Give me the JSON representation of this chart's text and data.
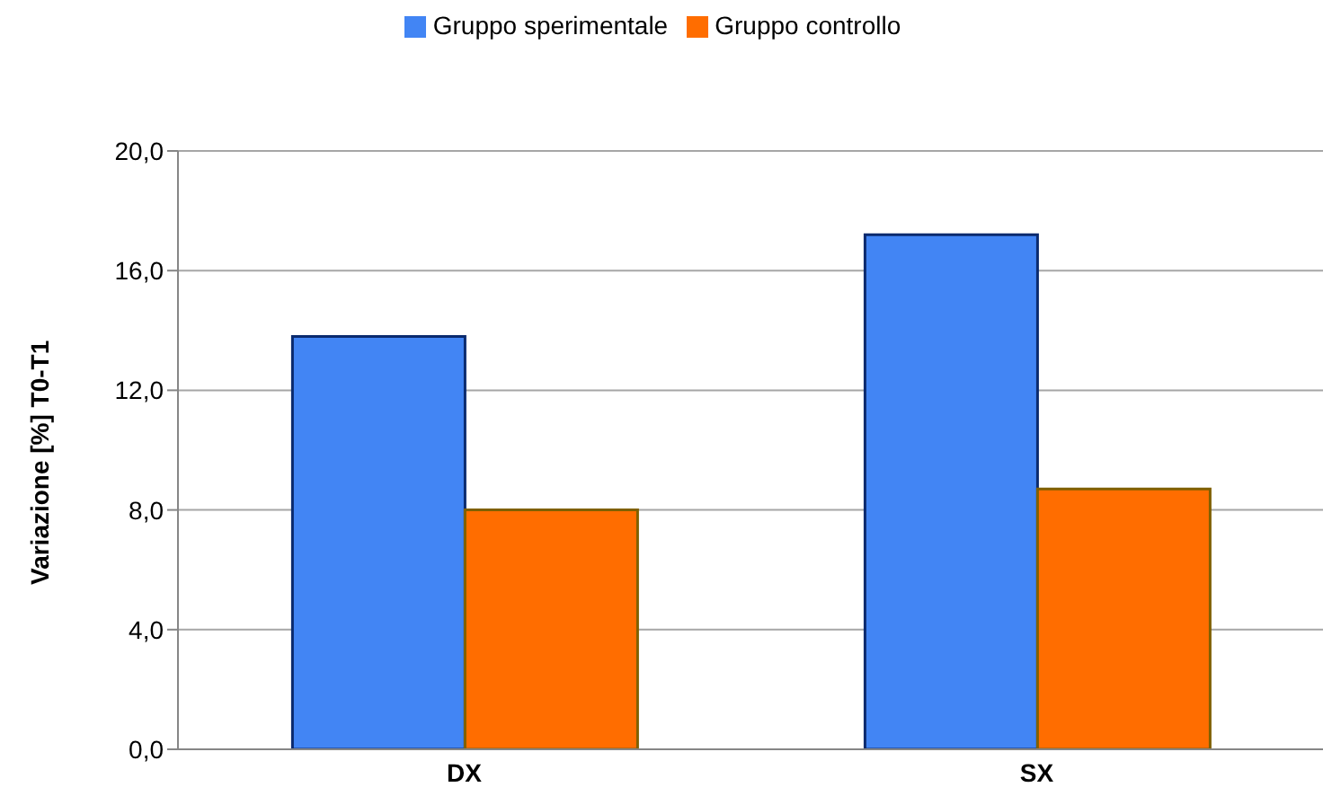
{
  "chart_data": {
    "type": "bar",
    "ylabel": "Variazione [%] T0-T1",
    "categories": [
      "DX",
      "SX"
    ],
    "series": [
      {
        "name": "Gruppo sperimentale",
        "color": "#4285f4",
        "values": [
          13.8,
          17.2
        ]
      },
      {
        "name": "Gruppo controllo",
        "color": "#ff6d00",
        "values": [
          8.0,
          8.7
        ]
      }
    ],
    "ylim": [
      0,
      20
    ],
    "yticks": [
      {
        "value": 0,
        "label": "0,0"
      },
      {
        "value": 4,
        "label": "4,0"
      },
      {
        "value": 8,
        "label": "8,0"
      },
      {
        "value": 12,
        "label": "12,0"
      },
      {
        "value": 16,
        "label": "16,0"
      },
      {
        "value": 20,
        "label": "20,0"
      }
    ],
    "grid": "y",
    "legend": "top"
  }
}
